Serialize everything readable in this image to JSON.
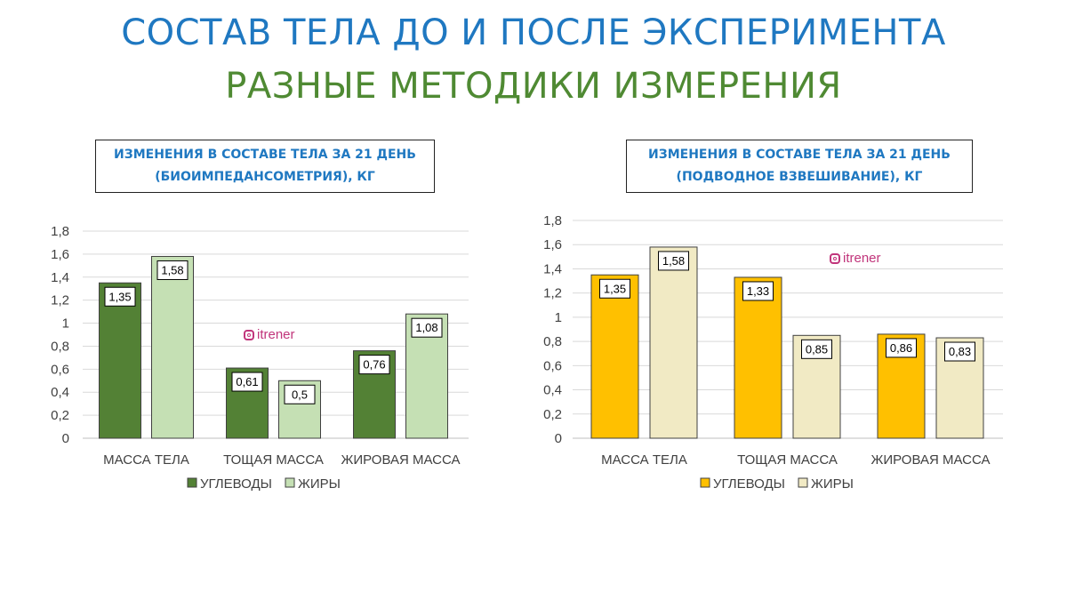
{
  "title": "СОСТАВ ТЕЛА ДО И ПОСЛЕ ЭКСПЕРИМЕНТА",
  "subtitle": "РАЗНЫЕ МЕТОДИКИ ИЗМЕРЕНИЯ",
  "watermark": "itrener",
  "colors": {
    "title": "#1f78c1",
    "subtitle": "#4f8a33",
    "chart_title": "#1f78c1",
    "watermark": "#c1357b"
  },
  "chart_data": [
    {
      "type": "bar",
      "title_lines": [
        "ИЗМЕНЕНИЯ  В СОСТАВЕ ТЕЛА ЗА 21 ДЕНЬ",
        "(БИОИМПЕДАНСОМЕТРИЯ),  КГ"
      ],
      "categories": [
        "МАССА ТЕЛА",
        "ТОЩАЯ МАССА",
        "ЖИРОВАЯ МАССА"
      ],
      "series": [
        {
          "name": "УГЛЕВОДЫ",
          "values": [
            1.35,
            0.61,
            0.76
          ],
          "labels": [
            "1,35",
            "0,61",
            "0,76"
          ],
          "color": "#538135"
        },
        {
          "name": "ЖИРЫ",
          "values": [
            1.58,
            0.5,
            1.08
          ],
          "labels": [
            "1,58",
            "0,5",
            "1,08"
          ],
          "color": "#c5e0b4"
        }
      ],
      "ylim": [
        0,
        1.8
      ],
      "yticks": [
        "0",
        "0,2",
        "0,4",
        "0,6",
        "0,8",
        "1",
        "1,2",
        "1,4",
        "1,6",
        "1,8"
      ],
      "grid": true,
      "legend": "bottom"
    },
    {
      "type": "bar",
      "title_lines": [
        "ИЗМЕНЕНИЯ  В СОСТАВЕ ТЕЛА ЗА 21 ДЕНЬ",
        "(ПОДВОДНОЕ  ВЗВЕШИВАНИЕ), КГ"
      ],
      "categories": [
        "МАССА ТЕЛА",
        "ТОЩАЯ МАССА",
        "ЖИРОВАЯ МАССА"
      ],
      "series": [
        {
          "name": "УГЛЕВОДЫ",
          "values": [
            1.35,
            1.33,
            0.86
          ],
          "labels": [
            "1,35",
            "1,33",
            "0,86"
          ],
          "color": "#ffc000"
        },
        {
          "name": "ЖИРЫ",
          "values": [
            1.58,
            0.85,
            0.83
          ],
          "labels": [
            "1,58",
            "0,85",
            "0,83"
          ],
          "color": "#f1eac4"
        }
      ],
      "ylim": [
        0,
        1.8
      ],
      "yticks": [
        "0",
        "0,2",
        "0,4",
        "0,6",
        "0,8",
        "1",
        "1,2",
        "1,4",
        "1,6",
        "1,8"
      ],
      "grid": true,
      "legend": "bottom"
    }
  ]
}
